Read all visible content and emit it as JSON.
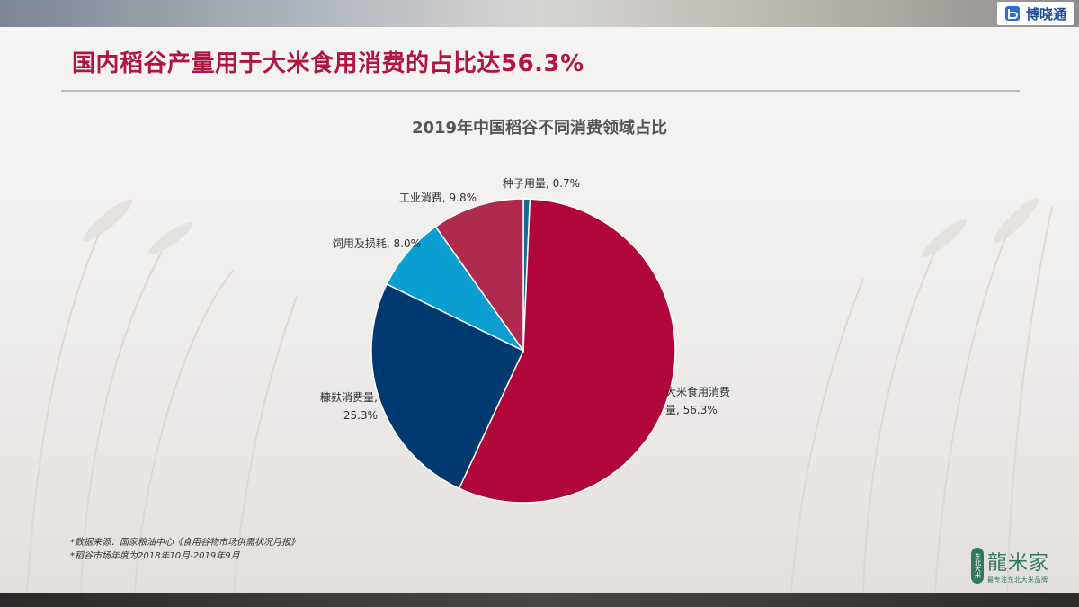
{
  "brand": {
    "name": "博晓通"
  },
  "page_title": "国内稻谷产量用于大米食用消费的占比达56.3%",
  "chart_data": {
    "type": "pie",
    "title": "2019年中国稻谷不同消费领域占比",
    "slices": [
      {
        "name": "种子用量",
        "value": 0.7,
        "label_lines": [
          "种子用量, 0.7%"
        ],
        "color": "#1a6a99"
      },
      {
        "name": "大米食用消费量",
        "value": 56.3,
        "label_lines": [
          "大米食用消费",
          "量, 56.3%"
        ],
        "color": "#b0063a"
      },
      {
        "name": "糠麸消费量",
        "value": 25.3,
        "label_lines": [
          "糠麸消费量,",
          "25.3%"
        ],
        "color": "#003a70"
      },
      {
        "name": "饲用及损耗",
        "value": 8.0,
        "label_lines": [
          "饲用及损耗, 8.0%"
        ],
        "color": "#0a9fd0"
      },
      {
        "name": "工业消费",
        "value": 9.8,
        "label_lines": [
          "工业消费, 9.8%"
        ],
        "color": "#b02a50"
      }
    ]
  },
  "footnotes": [
    "*数据来源：国家粮油中心《食用谷物市场供需状况月报》",
    "*稻谷市场年度为2018年10月-2019年9月"
  ],
  "logo": {
    "seal": "东北大米",
    "name": "龍米家",
    "tagline": "最专注东北大米品牌"
  }
}
